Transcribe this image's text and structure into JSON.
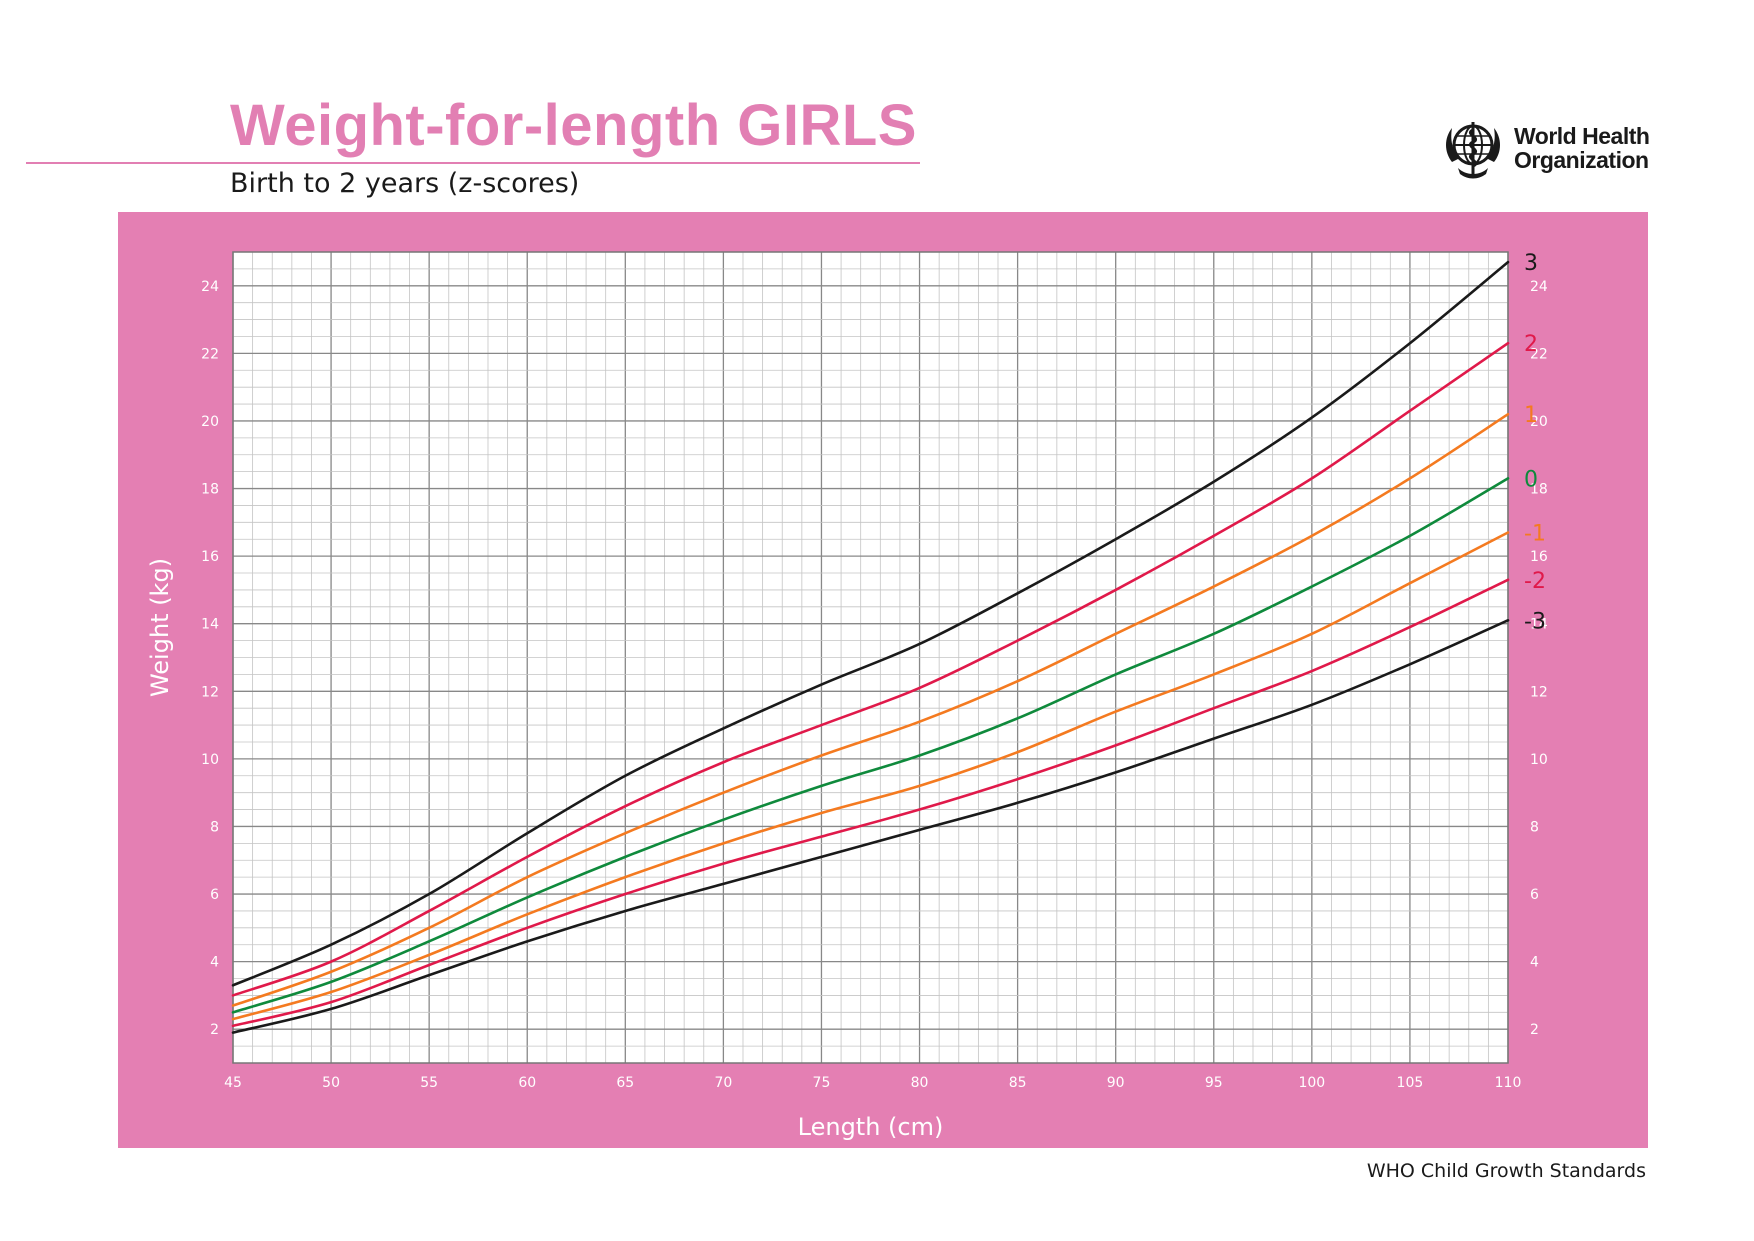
{
  "header": {
    "title": "Weight-for-length GIRLS",
    "subtitle": "Birth to 2 years (z-scores)"
  },
  "organization": {
    "name_line1": "World Health",
    "name_line2": "Organization",
    "emblem_icon": "who-emblem-icon"
  },
  "footer": {
    "text": "WHO Child Growth Standards"
  },
  "colors": {
    "accent_pink": "#e47fb3",
    "title_pink": "#e27fb3",
    "z3": "#1a1a1a",
    "z2": "#e0194a",
    "z1": "#f47a20",
    "z0": "#0f8a3c"
  },
  "chart_data": {
    "type": "line",
    "xlabel": "Length (cm)",
    "ylabel": "Weight (kg)",
    "xlim": [
      45,
      110
    ],
    "ylim": [
      1,
      25
    ],
    "x_ticks": [
      45,
      50,
      55,
      60,
      65,
      70,
      75,
      80,
      85,
      90,
      95,
      100,
      105,
      110
    ],
    "y_ticks": [
      2,
      4,
      6,
      8,
      10,
      12,
      14,
      16,
      18,
      20,
      22,
      24
    ],
    "grid": true,
    "x": [
      45,
      50,
      55,
      60,
      65,
      70,
      75,
      80,
      85,
      90,
      95,
      100,
      105,
      110
    ],
    "series": [
      {
        "name": "3",
        "color": "#1a1a1a",
        "values": [
          3.3,
          4.5,
          6.0,
          7.8,
          9.5,
          10.9,
          12.2,
          13.4,
          14.9,
          16.5,
          18.2,
          20.1,
          22.3,
          24.7
        ]
      },
      {
        "name": "2",
        "color": "#e0194a",
        "values": [
          3.0,
          4.0,
          5.5,
          7.1,
          8.6,
          9.9,
          11.0,
          12.1,
          13.5,
          15.0,
          16.6,
          18.3,
          20.3,
          22.3
        ]
      },
      {
        "name": "1",
        "color": "#f47a20",
        "values": [
          2.7,
          3.7,
          5.0,
          6.5,
          7.8,
          9.0,
          10.1,
          11.1,
          12.3,
          13.7,
          15.1,
          16.6,
          18.3,
          20.2
        ]
      },
      {
        "name": "0",
        "color": "#0f8a3c",
        "values": [
          2.5,
          3.4,
          4.6,
          5.9,
          7.1,
          8.2,
          9.2,
          10.1,
          11.2,
          12.5,
          13.7,
          15.1,
          16.6,
          18.3
        ]
      },
      {
        "name": "-1",
        "color": "#f47a20",
        "values": [
          2.3,
          3.1,
          4.2,
          5.4,
          6.5,
          7.5,
          8.4,
          9.2,
          10.2,
          11.4,
          12.5,
          13.7,
          15.2,
          16.7
        ]
      },
      {
        "name": "-2",
        "color": "#e0194a",
        "values": [
          2.1,
          2.8,
          3.9,
          5.0,
          6.0,
          6.9,
          7.7,
          8.5,
          9.4,
          10.4,
          11.5,
          12.6,
          13.9,
          15.3
        ]
      },
      {
        "name": "-3",
        "color": "#1a1a1a",
        "values": [
          1.9,
          2.6,
          3.6,
          4.6,
          5.5,
          6.3,
          7.1,
          7.9,
          8.7,
          9.6,
          10.6,
          11.6,
          12.8,
          14.1
        ]
      }
    ]
  }
}
